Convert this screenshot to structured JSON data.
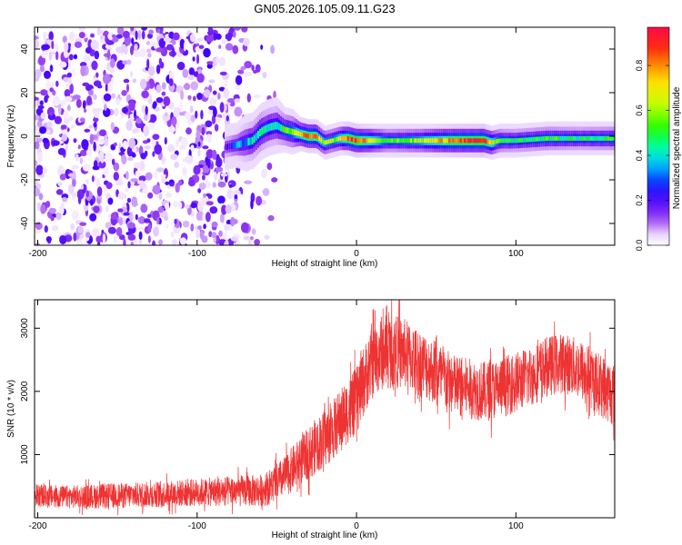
{
  "figure_title": "GN05.2026.105.09.11.G23",
  "colors": {
    "snr_line": "#ee3333",
    "axis": "#000000",
    "background": "#ffffff"
  },
  "chart_data": [
    {
      "type": "heatmap",
      "title": "GN05.2026.105.09.11.G23",
      "xlabel": "Height of straight line (km)",
      "ylabel": "Frequency (Hz)",
      "xlim": [
        -202,
        162
      ],
      "ylim": [
        -50,
        50
      ],
      "xticks": [
        -200,
        -100,
        0,
        100
      ],
      "yticks": [
        -40,
        -20,
        0,
        20,
        40
      ],
      "colorbar": {
        "label": "Normalized spectral amplitude",
        "range": [
          0,
          0.97
        ],
        "ticks": [
          0,
          0.2,
          0.4,
          0.6,
          0.8
        ],
        "tick_labels": [
          "0.0",
          "0.2",
          "0.4",
          "0.6",
          "0.8"
        ]
      },
      "noise_region_x": [
        -202,
        -48
      ],
      "noise_amplitude_range": [
        0.02,
        0.22
      ],
      "ridge": {
        "description": "frequency of peak spectral amplitude versus height",
        "x": [
          -82,
          -75,
          -70,
          -65,
          -60,
          -55,
          -50,
          -45,
          -40,
          -35,
          -30,
          -25,
          -20,
          -15,
          -10,
          -5,
          0,
          20,
          40,
          60,
          80,
          85,
          90,
          100,
          120,
          140,
          162
        ],
        "frequency": [
          -5,
          -4,
          -3,
          -2,
          2,
          4,
          5,
          3,
          2,
          1,
          0,
          0,
          -3,
          -2,
          -1,
          -1,
          -2,
          -2,
          -2,
          -2,
          -2,
          -3,
          -2,
          -2,
          -1,
          -1,
          -1
        ],
        "amplitude": [
          0.2,
          0.3,
          0.35,
          0.4,
          0.45,
          0.4,
          0.4,
          0.5,
          0.55,
          0.75,
          0.85,
          0.8,
          0.6,
          0.55,
          0.65,
          0.85,
          0.9,
          0.5,
          0.6,
          0.85,
          0.9,
          0.7,
          0.5,
          0.45,
          0.5,
          0.45,
          0.5
        ],
        "bandwidth_hz": [
          4,
          4,
          5,
          5,
          5,
          5,
          5,
          4,
          4,
          3,
          3,
          3,
          3,
          3,
          3,
          3,
          3,
          3,
          3,
          3,
          3,
          3,
          3,
          3,
          3,
          3,
          3
        ]
      }
    },
    {
      "type": "line",
      "xlabel": "Height of straight line (km)",
      "ylabel": "SNR (10 * v/v)",
      "xlim": [
        -202,
        162
      ],
      "ylim": [
        0,
        3450
      ],
      "xticks": [
        -200,
        -100,
        0,
        100
      ],
      "yticks": [
        1000,
        2000,
        3000
      ],
      "series": [
        {
          "name": "SNR",
          "description": "mean SNR envelope with noise spread (approx.)",
          "x": [
            -202,
            -180,
            -160,
            -140,
            -120,
            -100,
            -80,
            -60,
            -55,
            -50,
            -45,
            -40,
            -35,
            -30,
            -25,
            -20,
            -15,
            -10,
            -5,
            0,
            5,
            10,
            15,
            20,
            30,
            40,
            50,
            60,
            70,
            80,
            90,
            100,
            110,
            120,
            130,
            140,
            150,
            162
          ],
          "y": [
            350,
            330,
            340,
            360,
            380,
            400,
            420,
            430,
            480,
            560,
            650,
            780,
            900,
            1020,
            1150,
            1250,
            1380,
            1550,
            1700,
            1850,
            2200,
            2450,
            2600,
            2650,
            2600,
            2450,
            2300,
            2100,
            2050,
            2000,
            2050,
            2150,
            2250,
            2400,
            2450,
            2350,
            2150,
            1950
          ],
          "spread": [
            180,
            180,
            200,
            200,
            210,
            220,
            240,
            260,
            280,
            300,
            330,
            360,
            380,
            420,
            440,
            460,
            480,
            500,
            520,
            540,
            560,
            580,
            600,
            600,
            560,
            540,
            520,
            500,
            480,
            480,
            480,
            480,
            480,
            480,
            480,
            480,
            500,
            520
          ]
        }
      ]
    }
  ]
}
